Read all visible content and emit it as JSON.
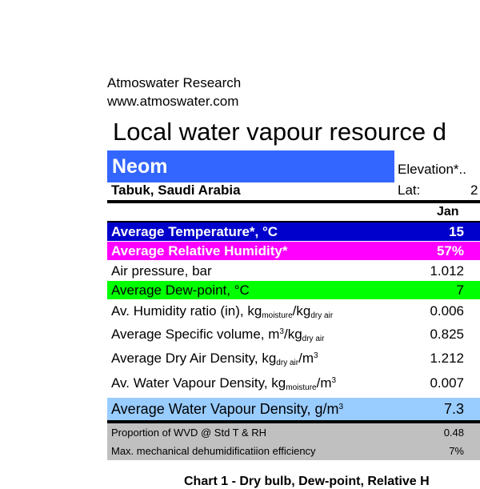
{
  "header": {
    "org": "Atmoswater Research",
    "url": "www.atmoswater.com",
    "title": "Local water vapour resource d"
  },
  "location": {
    "name": "Neom",
    "region": "Tabuk, Saudi Arabia",
    "elevation_label": "Elevation*..",
    "lat_label": "Lat:",
    "lat_value": "2"
  },
  "colors": {
    "location_bg": "#3366ff",
    "temp_bg": "#0000cc",
    "rh_bg": "#ff00ff",
    "dew_bg": "#00ff00",
    "wvd_bg": "#99ccff",
    "footer_bg": "#c0c0c0"
  },
  "table": {
    "month": "Jan",
    "rows": [
      {
        "label": "Average Temperature*, °C",
        "value": "15"
      },
      {
        "label": "Average Relative Humidity*",
        "value": "57%"
      },
      {
        "label": "Air pressure, bar",
        "value": "1.012"
      },
      {
        "label": "Average Dew-point, °C",
        "value": "7"
      },
      {
        "label": "Av. Humidity ratio (in), kg",
        "sub1": "moisture",
        "mid": "/kg",
        "sub2": "dry air",
        "value": "0.006"
      },
      {
        "label": "Average Specific volume, m",
        "sup": "3",
        "mid": "/kg",
        "sub2": "dry air",
        "value": "0.825"
      },
      {
        "label": "Average Dry Air Density, kg",
        "sub1": "dry air",
        "mid": "/m",
        "sup": "3",
        "value": "1.212"
      },
      {
        "label": "Av. Water Vapour Density, kg",
        "sub1": "moisture",
        "mid": "/m",
        "sup": "3",
        "value": "0.007"
      },
      {
        "label": "Average Water Vapour Density, g/m",
        "sup": "3",
        "value": "7.3"
      },
      {
        "label": "Proportion of WVD @ Std T & RH",
        "value": "0.48"
      },
      {
        "label": "Max. mechanical dehumidificatiion efficiency",
        "value": "7%"
      }
    ]
  },
  "chart_caption": "Chart 1 - Dry bulb, Dew-point, Relative H"
}
